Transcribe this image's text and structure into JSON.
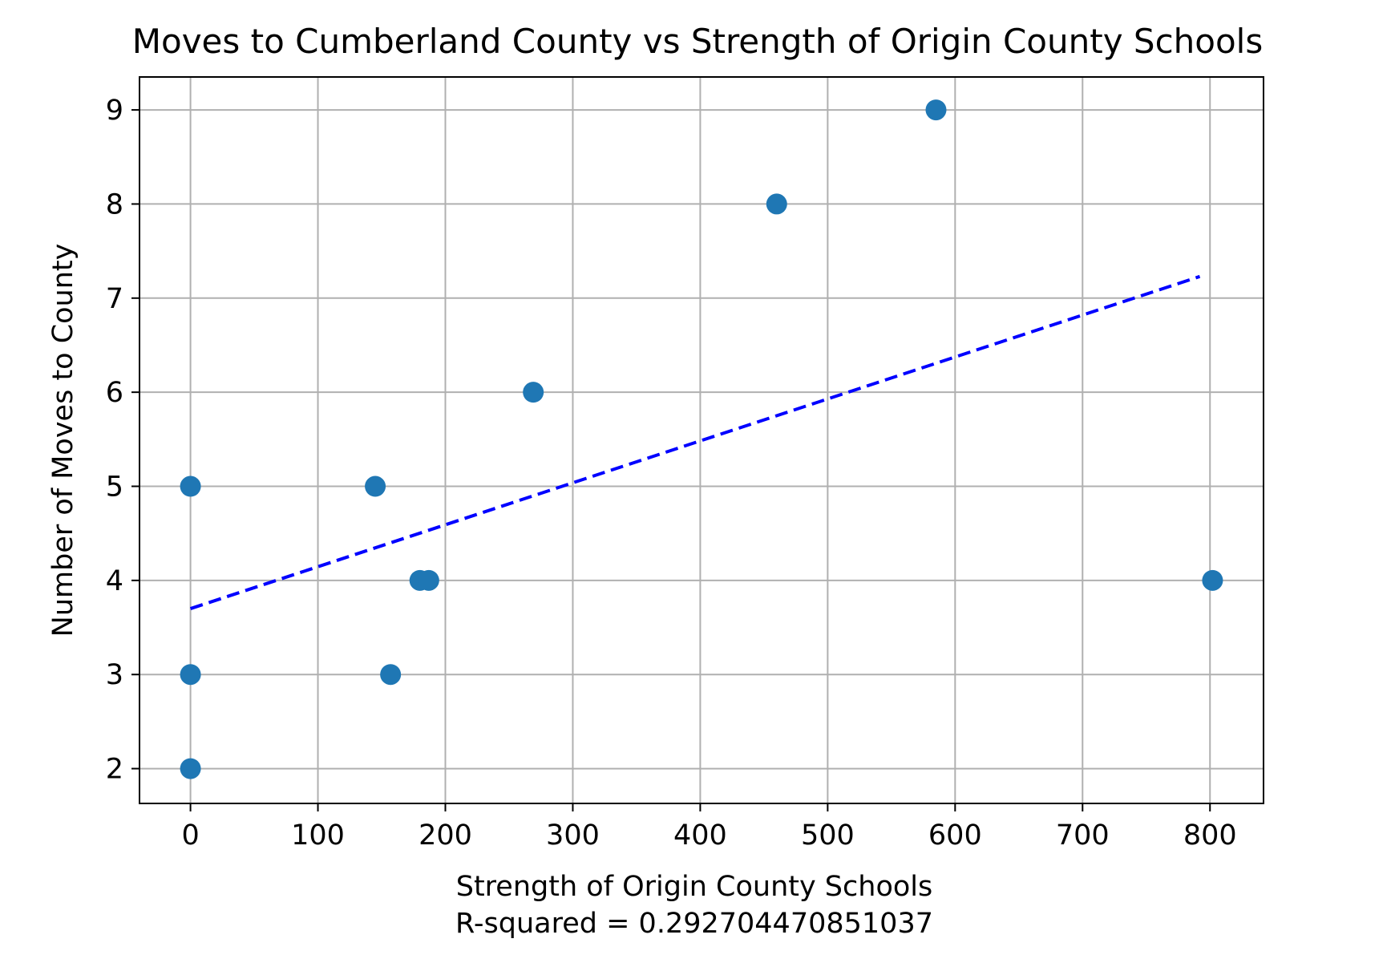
{
  "chart_data": {
    "type": "scatter",
    "title": "Moves to Cumberland County vs Strength of Origin County Schools",
    "xlabel": "Strength of Origin County Schools",
    "xlabel_note": "R-squared = 0.292704470851037",
    "ylabel": "Number of Moves to County",
    "xlim": [
      -40,
      842
    ],
    "ylim": [
      1.63,
      9.35
    ],
    "x_ticks": [
      0,
      100,
      200,
      300,
      400,
      500,
      600,
      700,
      800
    ],
    "y_ticks": [
      2,
      3,
      4,
      5,
      6,
      7,
      8,
      9
    ],
    "grid": true,
    "series": [
      {
        "color": "#1f77b4",
        "points": [
          {
            "x": 0,
            "y": 2
          },
          {
            "x": 0,
            "y": 3
          },
          {
            "x": 0,
            "y": 5
          },
          {
            "x": 145,
            "y": 5
          },
          {
            "x": 157,
            "y": 3
          },
          {
            "x": 180,
            "y": 4
          },
          {
            "x": 187,
            "y": 4
          },
          {
            "x": 269,
            "y": 6
          },
          {
            "x": 460,
            "y": 8
          },
          {
            "x": 585,
            "y": 9
          },
          {
            "x": 802,
            "y": 4
          }
        ]
      }
    ],
    "trendline": {
      "color": "#0000ff",
      "style": "dashed",
      "x": [
        0,
        792
      ],
      "y": [
        3.7,
        7.23
      ]
    }
  }
}
